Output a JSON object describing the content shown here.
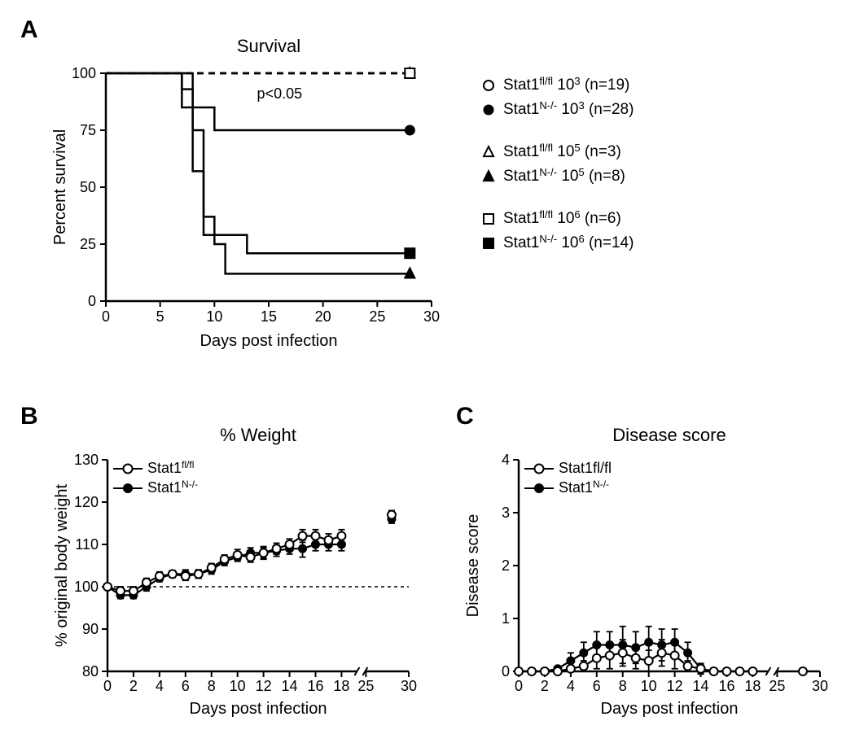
{
  "panelA": {
    "label": "A",
    "title": "Survival",
    "xlabel": "Days post infection",
    "ylabel": "Percent survival",
    "xlim": [
      0,
      30
    ],
    "ylim": [
      0,
      100
    ],
    "xticks": [
      0,
      5,
      10,
      15,
      20,
      25,
      30
    ],
    "yticks": [
      0,
      25,
      50,
      75,
      100
    ],
    "pvalue": "p<0.05",
    "title_fontsize": 22,
    "label_fontsize": 20,
    "tick_fontsize": 18,
    "colors": {
      "stroke": "#000000",
      "bg": "#ffffff"
    },
    "line_width": 2.5,
    "series": [
      {
        "name": "Stat1 fl/fl 10^3",
        "marker": "circle_open",
        "dash": "8,6",
        "data": [
          [
            0,
            100
          ],
          [
            28,
            100
          ]
        ],
        "endpoint_marker": true
      },
      {
        "name": "Stat1 N-/- 10^3",
        "marker": "circle_filled",
        "dash": "none",
        "data": [
          [
            0,
            100
          ],
          [
            7,
            100
          ],
          [
            7,
            93
          ],
          [
            8,
            93
          ],
          [
            8,
            85
          ],
          [
            10,
            85
          ],
          [
            10,
            75
          ],
          [
            11,
            75
          ],
          [
            28,
            75
          ]
        ],
        "endpoint_marker": true
      },
      {
        "name": "Stat1 fl/fl 10^5",
        "marker": "triangle_open",
        "dash": "8,6",
        "data": [
          [
            0,
            100
          ],
          [
            28,
            100
          ]
        ],
        "endpoint_marker": true
      },
      {
        "name": "Stat1 N-/- 10^5",
        "marker": "triangle_filled",
        "dash": "none",
        "data": [
          [
            0,
            100
          ],
          [
            8,
            100
          ],
          [
            8,
            75
          ],
          [
            9,
            75
          ],
          [
            9,
            37
          ],
          [
            10,
            37
          ],
          [
            10,
            25
          ],
          [
            11,
            25
          ],
          [
            11,
            12
          ],
          [
            28,
            12
          ]
        ],
        "endpoint_marker": true
      },
      {
        "name": "Stat1 fl/fl 10^6",
        "marker": "square_open",
        "dash": "8,6",
        "data": [
          [
            0,
            100
          ],
          [
            28,
            100
          ]
        ],
        "endpoint_marker": true
      },
      {
        "name": "Stat1 N-/- 10^6",
        "marker": "square_filled",
        "dash": "none",
        "data": [
          [
            0,
            100
          ],
          [
            7,
            100
          ],
          [
            7,
            85
          ],
          [
            8,
            85
          ],
          [
            8,
            57
          ],
          [
            9,
            57
          ],
          [
            9,
            29
          ],
          [
            10,
            29
          ],
          [
            13,
            29
          ],
          [
            13,
            21
          ],
          [
            28,
            21
          ]
        ],
        "endpoint_marker": true
      }
    ],
    "legend": [
      {
        "marker": "circle_open",
        "label_pre": "Stat1",
        "sup": "fl/fl",
        "label_post": " 10",
        "exp": "3",
        "n": "(n=19)"
      },
      {
        "marker": "circle_filled",
        "label_pre": "Stat1",
        "sup": "N-/-",
        "label_post": " 10",
        "exp": "3",
        "n": "(n=28)"
      },
      {
        "marker": "triangle_open",
        "label_pre": "Stat1",
        "sup": "fl/fl",
        "label_post": " 10",
        "exp": "5",
        "n": "(n=3)"
      },
      {
        "marker": "triangle_filled",
        "label_pre": "Stat1",
        "sup": "N-/-",
        "label_post": " 10",
        "exp": "5",
        "n": "(n=8)"
      },
      {
        "marker": "square_open",
        "label_pre": "Stat1",
        "sup": "fl/fl",
        "label_post": " 10",
        "exp": "6",
        "n": "(n=6)"
      },
      {
        "marker": "square_filled",
        "label_pre": "Stat1",
        "sup": "N-/-",
        "label_post": " 10",
        "exp": "6",
        "n": "(n=14)"
      }
    ]
  },
  "panelB": {
    "label": "B",
    "title": "% Weight",
    "xlabel": "Days post infection",
    "ylabel": "% original body weight",
    "xlim": [
      0,
      30
    ],
    "ylim": [
      80,
      130
    ],
    "xticks_main": [
      0,
      2,
      4,
      6,
      8,
      10,
      12,
      14,
      16,
      18
    ],
    "xticks_broken": [
      25,
      30
    ],
    "yticks": [
      80,
      90,
      100,
      110,
      120,
      130
    ],
    "baseline": 100,
    "title_fontsize": 22,
    "label_fontsize": 20,
    "tick_fontsize": 18,
    "colors": {
      "stroke": "#000000",
      "bg": "#ffffff"
    },
    "series_open": {
      "name": "Stat1 fl/fl",
      "marker": "circle_open",
      "data": [
        [
          0,
          100,
          0.5
        ],
        [
          1,
          99,
          1
        ],
        [
          2,
          99,
          1
        ],
        [
          3,
          101,
          1
        ],
        [
          4,
          102.5,
          1
        ],
        [
          5,
          103,
          0.8
        ],
        [
          6,
          102.5,
          1
        ],
        [
          7,
          103,
          1
        ],
        [
          8,
          104.5,
          1
        ],
        [
          9,
          106.5,
          1
        ],
        [
          10,
          107.5,
          1.3
        ],
        [
          11,
          107,
          1.2
        ],
        [
          12,
          108,
          1.5
        ],
        [
          13,
          109,
          1.3
        ],
        [
          14,
          110,
          1.3
        ],
        [
          15,
          112,
          1.5
        ],
        [
          16,
          112,
          1.5
        ],
        [
          17,
          111,
          1.5
        ],
        [
          18,
          112,
          1.5
        ],
        [
          28,
          117,
          1
        ]
      ]
    },
    "series_filled": {
      "name": "Stat1 N-/-",
      "marker": "circle_filled",
      "data": [
        [
          0,
          100,
          0.5
        ],
        [
          1,
          98,
          0.8
        ],
        [
          2,
          98,
          0.8
        ],
        [
          3,
          100,
          1
        ],
        [
          4,
          102,
          0.8
        ],
        [
          5,
          103,
          0.8
        ],
        [
          6,
          103,
          1
        ],
        [
          7,
          103,
          1
        ],
        [
          8,
          104,
          1
        ],
        [
          9,
          106,
          1
        ],
        [
          10,
          107,
          1
        ],
        [
          11,
          108,
          1.2
        ],
        [
          12,
          108,
          1.2
        ],
        [
          13,
          108.5,
          1.3
        ],
        [
          14,
          109,
          1.3
        ],
        [
          15,
          109,
          2
        ],
        [
          16,
          110,
          1.5
        ],
        [
          17,
          110,
          1.5
        ],
        [
          18,
          110,
          1.5
        ],
        [
          28,
          116,
          1
        ]
      ]
    },
    "legend": [
      {
        "marker": "circle_open",
        "label_pre": "Stat1",
        "sup": "fl/fl"
      },
      {
        "marker": "circle_filled",
        "label_pre": "Stat1",
        "sup": "N-/-"
      }
    ]
  },
  "panelC": {
    "label": "C",
    "title": "Disease score",
    "xlabel": "Days post infection",
    "ylabel": "Disease score",
    "xlim": [
      0,
      30
    ],
    "ylim": [
      0,
      4
    ],
    "xticks_main": [
      0,
      2,
      4,
      6,
      8,
      10,
      12,
      14,
      16,
      18
    ],
    "xticks_broken": [
      25,
      30
    ],
    "yticks": [
      0,
      1,
      2,
      3,
      4
    ],
    "title_fontsize": 22,
    "label_fontsize": 20,
    "tick_fontsize": 18,
    "colors": {
      "stroke": "#000000",
      "bg": "#ffffff"
    },
    "series_open": {
      "name": "Stat1fl/fl",
      "marker": "circle_open",
      "data": [
        [
          0,
          0,
          0
        ],
        [
          1,
          0,
          0
        ],
        [
          2,
          0,
          0
        ],
        [
          3,
          0,
          0
        ],
        [
          4,
          0.05,
          0.05
        ],
        [
          5,
          0.1,
          0.1
        ],
        [
          6,
          0.25,
          0.2
        ],
        [
          7,
          0.3,
          0.25
        ],
        [
          8,
          0.35,
          0.25
        ],
        [
          9,
          0.25,
          0.2
        ],
        [
          10,
          0.2,
          0.2
        ],
        [
          11,
          0.35,
          0.25
        ],
        [
          12,
          0.3,
          0.25
        ],
        [
          13,
          0.1,
          0.1
        ],
        [
          14,
          0.05,
          0.08
        ],
        [
          15,
          0,
          0
        ],
        [
          16,
          0,
          0
        ],
        [
          17,
          0,
          0
        ],
        [
          18,
          0,
          0
        ],
        [
          28,
          0,
          0.05
        ]
      ]
    },
    "series_filled": {
      "name": "Stat1 N-/-",
      "marker": "circle_filled",
      "data": [
        [
          0,
          0,
          0
        ],
        [
          1,
          0,
          0
        ],
        [
          2,
          0,
          0
        ],
        [
          3,
          0.05,
          0.05
        ],
        [
          4,
          0.2,
          0.15
        ],
        [
          5,
          0.35,
          0.2
        ],
        [
          6,
          0.5,
          0.25
        ],
        [
          7,
          0.5,
          0.25
        ],
        [
          8,
          0.5,
          0.35
        ],
        [
          9,
          0.45,
          0.3
        ],
        [
          10,
          0.55,
          0.3
        ],
        [
          11,
          0.5,
          0.3
        ],
        [
          12,
          0.55,
          0.25
        ],
        [
          13,
          0.35,
          0.2
        ],
        [
          14,
          0.05,
          0.1
        ],
        [
          15,
          0,
          0
        ],
        [
          16,
          0,
          0
        ],
        [
          17,
          0,
          0
        ],
        [
          18,
          0,
          0
        ],
        [
          28,
          0,
          0.05
        ]
      ]
    },
    "legend": [
      {
        "marker": "circle_open",
        "label_pre": "Stat1fl/fl",
        "sup": ""
      },
      {
        "marker": "circle_filled",
        "label_pre": "Stat1",
        "sup": "N-/-"
      }
    ]
  }
}
